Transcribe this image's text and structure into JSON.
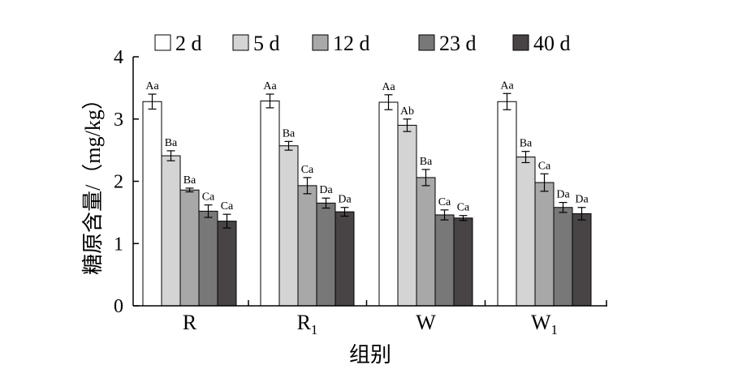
{
  "chart_data": {
    "type": "bar",
    "title": "",
    "xlabel": "组别",
    "ylabel": "糖原含量/（mg/kg）",
    "ylim": [
      0,
      4
    ],
    "yticks": [
      "0",
      "1",
      "2",
      "3",
      "4"
    ],
    "grid": false,
    "legend_position": "top",
    "categories": [
      {
        "main": "R",
        "sub": ""
      },
      {
        "main": "R",
        "sub": "1"
      },
      {
        "main": "W",
        "sub": ""
      },
      {
        "main": "W",
        "sub": "1"
      }
    ],
    "series": [
      {
        "name": "2 d",
        "color": "#ffffff",
        "values": [
          3.28,
          3.29,
          3.27,
          3.28
        ],
        "errors": [
          0.12,
          0.11,
          0.12,
          0.13
        ],
        "labels": [
          "Aa",
          "Aa",
          "Aa",
          "Aa"
        ]
      },
      {
        "name": "5 d",
        "color": "#d4d4d4",
        "values": [
          2.41,
          2.57,
          2.9,
          2.39
        ],
        "errors": [
          0.08,
          0.07,
          0.1,
          0.09
        ],
        "labels": [
          "Ba",
          "Ba",
          "Ab",
          "Ba"
        ]
      },
      {
        "name": "12 d",
        "color": "#a8a8a8",
        "values": [
          1.86,
          1.93,
          2.06,
          1.98
        ],
        "errors": [
          0.03,
          0.13,
          0.13,
          0.14
        ],
        "labels": [
          "Ba",
          "Ca",
          "Ba",
          "Ca"
        ]
      },
      {
        "name": "23 d",
        "color": "#787878",
        "values": [
          1.52,
          1.65,
          1.46,
          1.58
        ],
        "errors": [
          0.1,
          0.08,
          0.08,
          0.08
        ],
        "labels": [
          "Ca",
          "Da",
          "Ca",
          "Da"
        ]
      },
      {
        "name": "40 d",
        "color": "#484446",
        "values": [
          1.36,
          1.51,
          1.41,
          1.48
        ],
        "errors": [
          0.11,
          0.07,
          0.04,
          0.1
        ],
        "labels": [
          "Ca",
          "Da",
          "Ca",
          "Da"
        ]
      }
    ]
  }
}
